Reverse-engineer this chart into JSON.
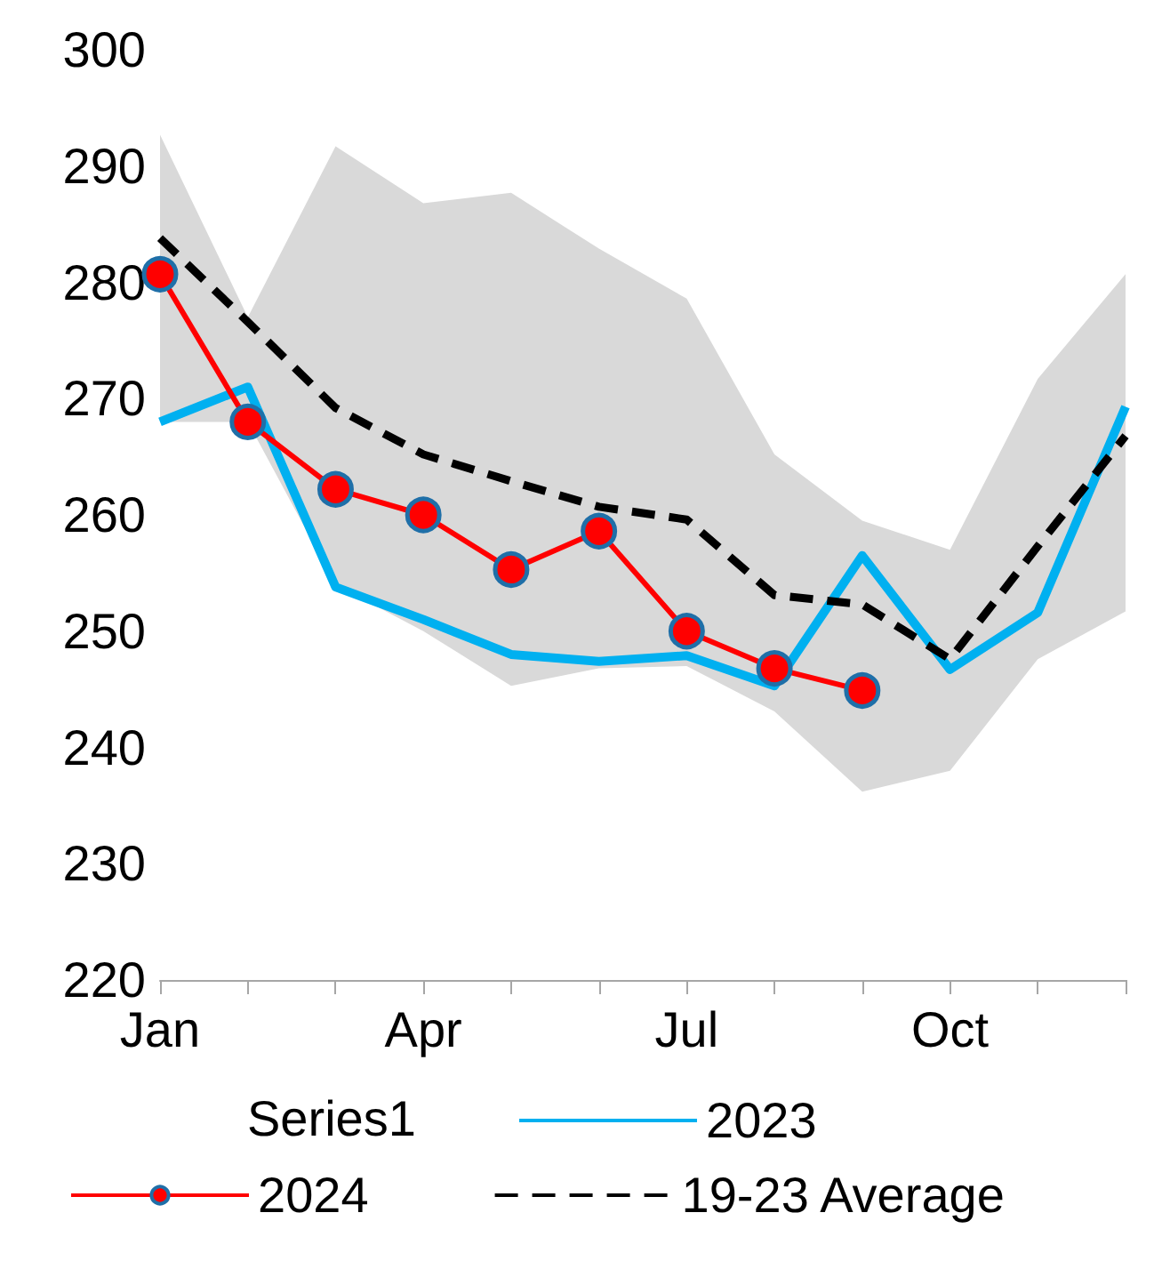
{
  "chart_data": {
    "type": "line",
    "categories": [
      "Jan",
      null,
      null,
      "Apr",
      null,
      null,
      "Jul",
      null,
      null,
      "Oct",
      null,
      null
    ],
    "series": [
      {
        "name": "2023",
        "type": "line",
        "color": "#00b0f0",
        "marker": "none",
        "values": [
          268,
          271,
          253.8,
          251,
          248,
          247.4,
          247.9,
          245.3,
          256.5,
          246.7,
          251.6,
          269.3
        ]
      },
      {
        "name": "2024",
        "type": "line",
        "color": "#ff0000",
        "marker": "circle",
        "values": [
          280.7,
          268,
          262.2,
          260,
          255.3,
          258.6,
          250,
          246.8,
          244.9,
          null,
          null,
          null
        ]
      },
      {
        "name": "19-23 Average",
        "type": "line",
        "color": "#000000",
        "marker": "none",
        "line_style": "dashed",
        "values": [
          283.8,
          276.6,
          269.2,
          265.2,
          262.9,
          260.7,
          259.6,
          253.1,
          252.3,
          247.6,
          257.3,
          266.8
        ],
        "lower": [
          268,
          268,
          254,
          250,
          245.3,
          246.8,
          247,
          243.1,
          236.2,
          238,
          247.6,
          251.7
        ],
        "upper": [
          292.7,
          277,
          291.7,
          286.8,
          287.7,
          282.9,
          278.6,
          265.2,
          259.5,
          257,
          271.7,
          280.7
        ]
      }
    ],
    "annotations": [
      "Series1"
    ],
    "ylim": [
      220,
      300
    ],
    "yticks": [
      220,
      230,
      240,
      250,
      260,
      270,
      280,
      290,
      300
    ],
    "grid": false,
    "legend": "bottom"
  }
}
